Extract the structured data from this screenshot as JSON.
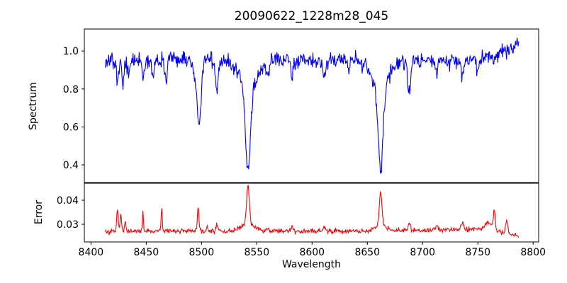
{
  "figure": {
    "title": "20090622_1228m28_045",
    "background_color": "#ffffff",
    "axes_color": "#000000"
  },
  "chart_data": [
    {
      "id": "spectrum",
      "type": "line",
      "title": "20090622_1228m28_045",
      "ylabel": "Spectrum",
      "xlabel": "",
      "line_color": "#0000ff",
      "grid": false,
      "legend": null,
      "xlim": [
        8394,
        8805
      ],
      "ylim": [
        0.307,
        1.116
      ],
      "yticks": [
        0.4,
        0.6,
        0.8,
        1.0
      ],
      "ytick_labels": [
        "0.4",
        "0.6",
        "0.8",
        "1.0"
      ],
      "xticks": [
        8400,
        8450,
        8500,
        8550,
        8600,
        8650,
        8700,
        8750,
        8800
      ],
      "xtick_labels": [
        "8400",
        "8450",
        "8500",
        "8550",
        "8600",
        "8650",
        "8700",
        "8750",
        "8800"
      ],
      "show_xtick_labels": false,
      "continuum_level": 0.95,
      "major_absorption_lines": [
        {
          "center": 8498,
          "min_value": 0.56
        },
        {
          "center": 8542,
          "min_value": 0.37
        },
        {
          "center": 8662,
          "min_value": 0.37
        }
      ],
      "model": {
        "direction": "absorption",
        "x_start": 8413,
        "x_end": 8787,
        "n_points": 748,
        "seed": 13,
        "noise_sigma": 0.022,
        "continuum": [
          [
            8413,
            0.945
          ],
          [
            8450,
            0.952
          ],
          [
            8500,
            0.956
          ],
          [
            8545,
            0.945
          ],
          [
            8600,
            0.952
          ],
          [
            8660,
            0.948
          ],
          [
            8700,
            0.946
          ],
          [
            8740,
            0.952
          ],
          [
            8768,
            0.975
          ],
          [
            8780,
            1.01
          ],
          [
            8787,
            1.05
          ]
        ],
        "lines": [
          [
            8424,
            0.1,
            1.0
          ],
          [
            8429,
            0.13,
            1.0
          ],
          [
            8434,
            0.07,
            0.9
          ],
          [
            8447,
            0.09,
            0.9
          ],
          [
            8456,
            0.1,
            1.0
          ],
          [
            8468,
            0.11,
            1.1
          ],
          [
            8494,
            0.08,
            3.0
          ],
          [
            8498,
            0.31,
            1.7
          ],
          [
            8514,
            0.15,
            1.1
          ],
          [
            8542,
            0.42,
            2.3
          ],
          [
            8542,
            0.15,
            7.5
          ],
          [
            8560,
            0.07,
            1.0
          ],
          [
            8582,
            0.09,
            1.1
          ],
          [
            8611,
            0.1,
            1.0
          ],
          [
            8633,
            0.06,
            1.0
          ],
          [
            8662,
            0.42,
            2.1
          ],
          [
            8662,
            0.15,
            7.0
          ],
          [
            8688,
            0.16,
            1.3
          ],
          [
            8713,
            0.07,
            1.0
          ],
          [
            8736,
            0.09,
            1.1
          ],
          [
            8750,
            0.06,
            1.0
          ]
        ]
      }
    },
    {
      "id": "error",
      "type": "line",
      "title": "",
      "ylabel": "Error",
      "xlabel": "Wavelength",
      "line_color": "#ff0000",
      "grid": false,
      "legend": null,
      "xlim": [
        8394,
        8805
      ],
      "ylim": [
        0.02265,
        0.04706
      ],
      "yticks": [
        0.03,
        0.04
      ],
      "ytick_labels": [
        "0.03",
        "0.04"
      ],
      "xticks": [
        8400,
        8450,
        8500,
        8550,
        8600,
        8650,
        8700,
        8750,
        8800
      ],
      "xtick_labels": [
        "8400",
        "8450",
        "8500",
        "8550",
        "8600",
        "8650",
        "8700",
        "8750",
        "8800"
      ],
      "show_xtick_labels": true,
      "baseline_level": 0.0272,
      "major_error_peaks": [
        {
          "center": 8424,
          "peak_value": 0.037
        },
        {
          "center": 8447,
          "peak_value": 0.035
        },
        {
          "center": 8464,
          "peak_value": 0.037
        },
        {
          "center": 8497,
          "peak_value": 0.0376
        },
        {
          "center": 8542,
          "peak_value": 0.0462
        },
        {
          "center": 8662,
          "peak_value": 0.0438
        },
        {
          "center": 8765,
          "peak_value": 0.036
        }
      ],
      "model": {
        "direction": "emission",
        "x_start": 8413,
        "x_end": 8787,
        "n_points": 748,
        "seed": 101,
        "noise_sigma": 0.00048,
        "continuum": [
          [
            8413,
            0.027
          ],
          [
            8460,
            0.0273
          ],
          [
            8550,
            0.0272
          ],
          [
            8650,
            0.0272
          ],
          [
            8700,
            0.0274
          ],
          [
            8745,
            0.0282
          ],
          [
            8762,
            0.0278
          ],
          [
            8775,
            0.0262
          ],
          [
            8787,
            0.025
          ]
        ],
        "lines": [
          [
            8424,
            0.0092,
            0.7
          ],
          [
            8427,
            0.0075,
            0.6
          ],
          [
            8431,
            0.0045,
            0.6
          ],
          [
            8447,
            0.0082,
            0.5
          ],
          [
            8464,
            0.0095,
            0.5
          ],
          [
            8497,
            0.01,
            0.7
          ],
          [
            8505,
            0.0018,
            0.8
          ],
          [
            8514,
            0.0028,
            0.8
          ],
          [
            8542,
            0.016,
            1.2
          ],
          [
            8542,
            0.0032,
            6.0
          ],
          [
            8560,
            0.0015,
            1.0
          ],
          [
            8582,
            0.0018,
            1.0
          ],
          [
            8611,
            0.002,
            1.0
          ],
          [
            8662,
            0.014,
            1.1
          ],
          [
            8662,
            0.0026,
            5.0
          ],
          [
            8688,
            0.0032,
            1.0
          ],
          [
            8713,
            0.0018,
            1.0
          ],
          [
            8736,
            0.0028,
            1.0
          ],
          [
            8760,
            0.0028,
            3.0
          ],
          [
            8765,
            0.0078,
            0.8
          ],
          [
            8776,
            0.0052,
            1.0
          ]
        ]
      }
    }
  ]
}
